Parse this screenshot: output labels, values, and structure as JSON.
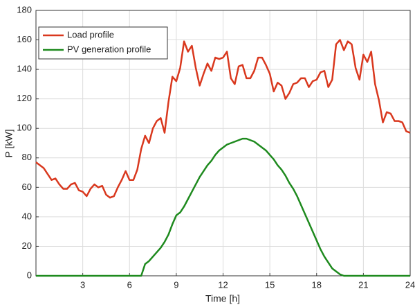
{
  "chart_data": {
    "type": "line",
    "x_label": "Time [h]",
    "y_label": "P [kW]",
    "x": [
      0,
      0.25,
      0.5,
      0.75,
      1,
      1.25,
      1.5,
      1.75,
      2,
      2.25,
      2.5,
      2.75,
      3,
      3.25,
      3.5,
      3.75,
      4,
      4.25,
      4.5,
      4.75,
      5,
      5.25,
      5.5,
      5.75,
      6,
      6.25,
      6.5,
      6.75,
      7,
      7.25,
      7.5,
      7.75,
      8,
      8.25,
      8.5,
      8.75,
      9,
      9.25,
      9.5,
      9.75,
      10,
      10.25,
      10.5,
      10.75,
      11,
      11.25,
      11.5,
      11.75,
      12,
      12.25,
      12.5,
      12.75,
      13,
      13.25,
      13.5,
      13.75,
      14,
      14.25,
      14.5,
      14.75,
      15,
      15.25,
      15.5,
      15.75,
      16,
      16.25,
      16.5,
      16.75,
      17,
      17.25,
      17.5,
      17.75,
      18,
      18.25,
      18.5,
      18.75,
      19,
      19.25,
      19.5,
      19.75,
      20,
      20.25,
      20.5,
      20.75,
      21,
      21.25,
      21.5,
      21.75,
      22,
      22.25,
      22.5,
      22.75,
      23,
      23.25,
      23.5,
      23.75,
      24
    ],
    "series": [
      {
        "name": "Load profile",
        "color": "#d9381e",
        "values": [
          77,
          75,
          73,
          69,
          65,
          66,
          62,
          59,
          59,
          62,
          63,
          58,
          57,
          54,
          59,
          62,
          60,
          61,
          55,
          53,
          54,
          60,
          65,
          71,
          65,
          65,
          72,
          86,
          95,
          90,
          100,
          105,
          107,
          97,
          118,
          135,
          132,
          141,
          159,
          152,
          156,
          141,
          129,
          137,
          144,
          139,
          148,
          147,
          148,
          152,
          134,
          130,
          142,
          143,
          134,
          134,
          139,
          148,
          148,
          143,
          137,
          125,
          131,
          129,
          120,
          124,
          130,
          131,
          134,
          134,
          128,
          132,
          133,
          138,
          139,
          128,
          133,
          157,
          160,
          153,
          159,
          157,
          141,
          133,
          150,
          145,
          152,
          130,
          119,
          104,
          111,
          110,
          105,
          105,
          104,
          98,
          97
        ]
      },
      {
        "name": "PV generation profile",
        "color": "#1e8a1e",
        "values": [
          0,
          0,
          0,
          0,
          0,
          0,
          0,
          0,
          0,
          0,
          0,
          0,
          0,
          0,
          0,
          0,
          0,
          0,
          0,
          0,
          0,
          0,
          0,
          0,
          0,
          0,
          0,
          0,
          8,
          10,
          13,
          16,
          19,
          23,
          28,
          35,
          41,
          43,
          47,
          52,
          57,
          62,
          67,
          71,
          75,
          78,
          82,
          85,
          87,
          89,
          90,
          91,
          92,
          93,
          93,
          92,
          91,
          89,
          87,
          85,
          82,
          79,
          75,
          72,
          68,
          63,
          59,
          54,
          48,
          42,
          36,
          30,
          24,
          18,
          13,
          9,
          5,
          3,
          1,
          0,
          0,
          0,
          0,
          0,
          0,
          0,
          0,
          0,
          0,
          0,
          0,
          0,
          0,
          0,
          0,
          0,
          0
        ]
      }
    ],
    "xlim": [
      0,
      24
    ],
    "xticks": [
      3,
      6,
      9,
      12,
      15,
      18,
      21,
      24
    ],
    "ylim": [
      0,
      180
    ],
    "yticks": [
      0,
      20,
      40,
      60,
      80,
      100,
      120,
      140,
      160,
      180
    ],
    "grid": true,
    "legend": "upper left"
  }
}
